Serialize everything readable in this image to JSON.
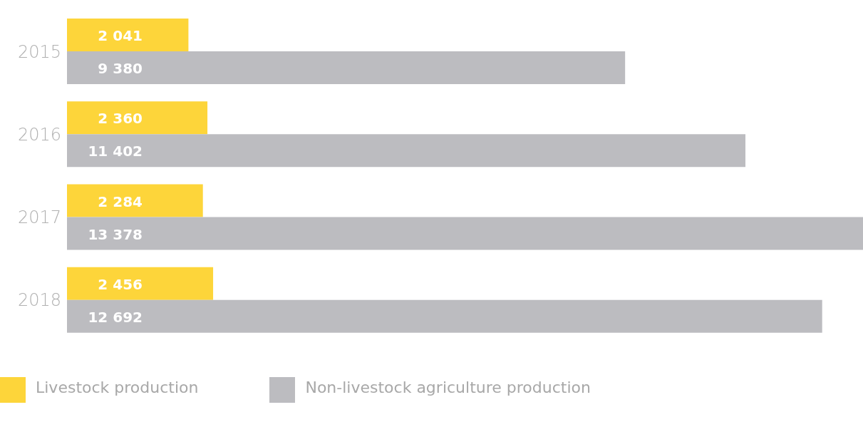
{
  "chart_data": {
    "type": "bar",
    "orientation": "horizontal",
    "categories": [
      "2015",
      "2016",
      "2017",
      "2018"
    ],
    "series": [
      {
        "name": "Livestock production",
        "color": "#fdd53a",
        "values": [
          2041,
          2360,
          2284,
          2456
        ],
        "value_labels": [
          "2 041",
          "2 360",
          "2 284",
          "2 456"
        ]
      },
      {
        "name": "Non-livestock agriculture production",
        "color": "#bcbcc0",
        "values": [
          9380,
          11402,
          13378,
          12692
        ],
        "value_labels": [
          "9 380",
          "11 402",
          "13 378",
          "12 692"
        ]
      }
    ],
    "legend": "bottom left",
    "grid": false
  }
}
